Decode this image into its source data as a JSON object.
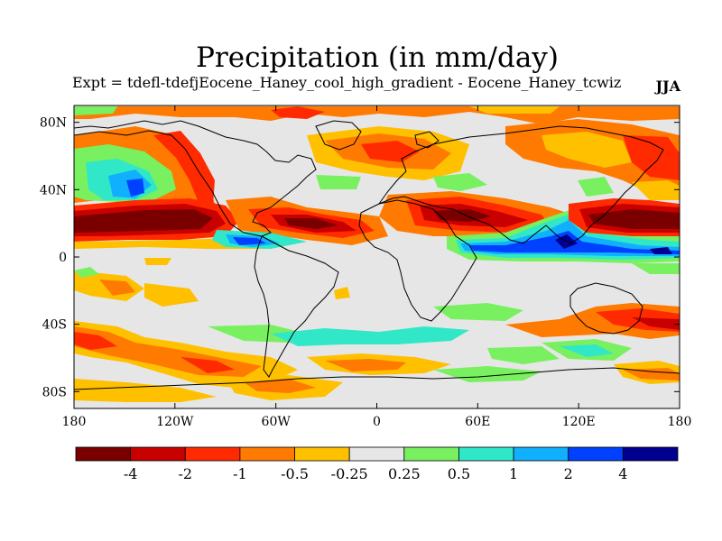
{
  "title": "Precipitation (in mm/day)",
  "subtitle": "Expt = tdefl-tdefjEocene_Haney_cool_high_gradient - Eocene_Haney_tcwiz",
  "season": "JJA",
  "axes": {
    "lat_labels": [
      "80N",
      "40N",
      "0",
      "40S",
      "80S"
    ],
    "lat_values": [
      80,
      40,
      0,
      -40,
      -80
    ],
    "lon_labels": [
      "180",
      "120W",
      "60W",
      "0",
      "60E",
      "120E",
      "180"
    ],
    "lon_values": [
      -180,
      -120,
      -60,
      0,
      60,
      120,
      180
    ],
    "lon_range": [
      -180,
      180
    ],
    "lat_range": [
      -90,
      90
    ]
  },
  "colorbar": {
    "colors": [
      "#7a0000",
      "#c80000",
      "#ff2a00",
      "#ff7a00",
      "#ffc000",
      "#e6e6e6",
      "#78f060",
      "#30e8c8",
      "#10b0ff",
      "#0040ff",
      "#000090"
    ],
    "labels": [
      "-4",
      "-2",
      "-1",
      "-0.5",
      "-0.25",
      "0.25",
      "0.5",
      "1",
      "2",
      "4"
    ]
  },
  "colors": {
    "background_field": "#e6e6e6",
    "coastline": "#000000"
  }
}
